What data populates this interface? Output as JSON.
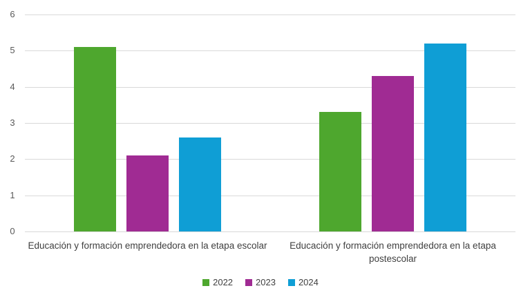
{
  "chart_data": {
    "type": "bar",
    "categories": [
      "Educación y formación emprendedora en la etapa escolar",
      "Educación y formación emprendedora en la etapa postescolar"
    ],
    "series": [
      {
        "name": "2022",
        "color": "#4EA72E",
        "values": [
          5.1,
          3.3
        ]
      },
      {
        "name": "2023",
        "color": "#A02B93",
        "values": [
          2.1,
          4.3
        ]
      },
      {
        "name": "2024",
        "color": "#0F9ED5",
        "values": [
          2.6,
          5.2
        ]
      }
    ],
    "title": "",
    "xlabel": "",
    "ylabel": "",
    "ylim": [
      0,
      6
    ],
    "yticks": [
      0,
      1,
      2,
      3,
      4,
      5,
      6
    ],
    "grid": true,
    "gridline_color": "#D9D9D9",
    "tick_label_color": "#595959",
    "category_label_color": "#404040",
    "legend_position": "bottom"
  }
}
